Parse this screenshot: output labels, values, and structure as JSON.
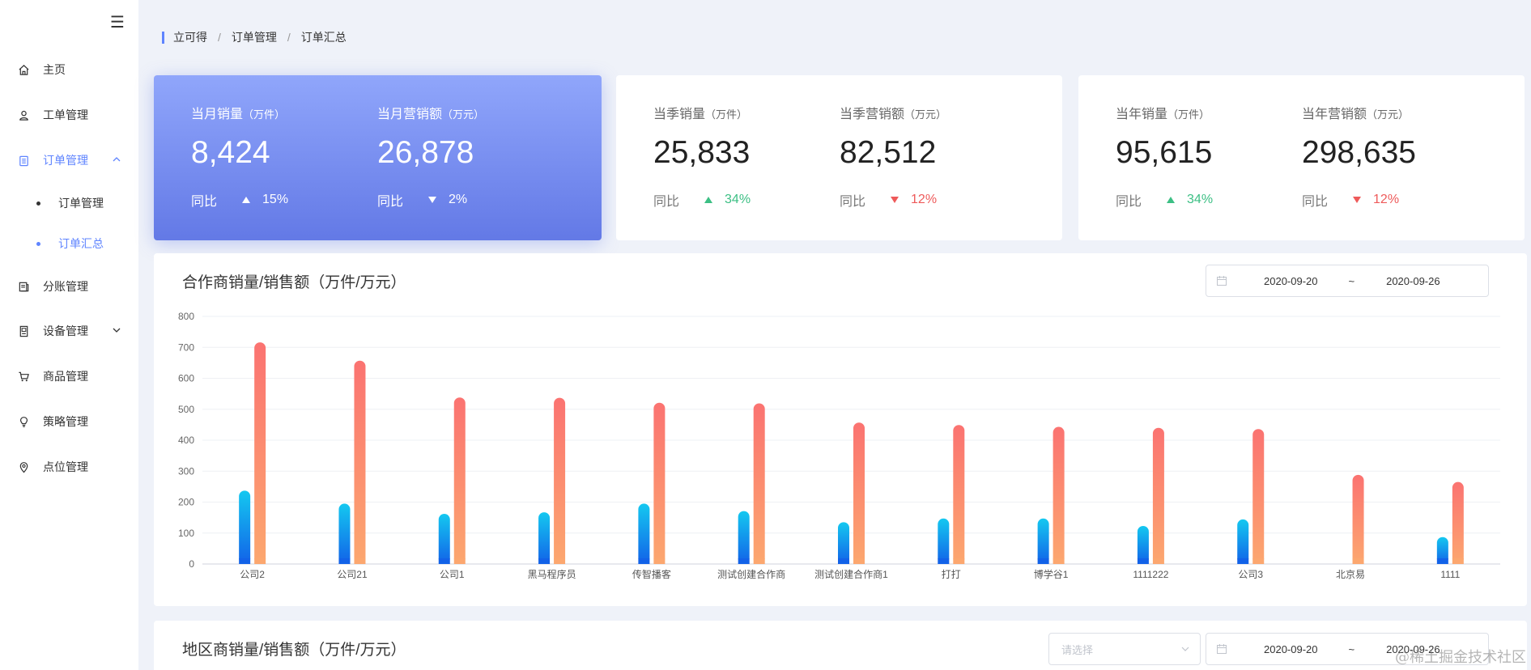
{
  "sidebar": {
    "toggle_icon": "hamburger-icon",
    "items": [
      {
        "label": "主页",
        "icon": "home-icon"
      },
      {
        "label": "工单管理",
        "icon": "user-icon"
      },
      {
        "label": "订单管理",
        "icon": "clipboard-icon",
        "expanded": true
      },
      {
        "label": "分账管理",
        "icon": "ledger-icon"
      },
      {
        "label": "设备管理",
        "icon": "device-icon"
      },
      {
        "label": "商品管理",
        "icon": "cart-icon"
      },
      {
        "label": "策略管理",
        "icon": "bulb-icon"
      },
      {
        "label": "点位管理",
        "icon": "location-icon"
      }
    ],
    "subitems": [
      {
        "label": "订单管理"
      },
      {
        "label": "订单汇总",
        "active": true
      }
    ],
    "accent": "#5f84ff"
  },
  "breadcrumb": [
    "立可得",
    "订单管理",
    "订单汇总"
  ],
  "stats": [
    {
      "a": {
        "label": "当月销量",
        "unit": "（万件）",
        "value": "8,424",
        "trend_label": "同比",
        "dir": "up",
        "pct": "15%"
      },
      "b": {
        "label": "当月营销额",
        "unit": "（万元）",
        "value": "26,878",
        "trend_label": "同比",
        "dir": "down",
        "pct": "2%"
      }
    },
    {
      "a": {
        "label": "当季销量",
        "unit": "（万件）",
        "value": "25,833",
        "trend_label": "同比",
        "dir": "up",
        "pct": "34%"
      },
      "b": {
        "label": "当季营销额",
        "unit": "（万元）",
        "value": "82,512",
        "trend_label": "同比",
        "dir": "down",
        "pct": "12%"
      }
    },
    {
      "a": {
        "label": "当年销量",
        "unit": "（万件）",
        "value": "95,615",
        "trend_label": "同比",
        "dir": "up",
        "pct": "34%"
      },
      "b": {
        "label": "当年营销额",
        "unit": "（万元）",
        "value": "298,635",
        "trend_label": "同比",
        "dir": "down",
        "pct": "12%"
      }
    }
  ],
  "partner_panel": {
    "title": "合作商销量/销售额（万件/万元）",
    "date_start": "2020-09-20",
    "date_sep": "~",
    "date_end": "2020-09-26"
  },
  "region_panel": {
    "title": "地区商销量/销售额（万件/万元）",
    "select_placeholder": "请选择",
    "date_start": "2020-09-20",
    "date_sep": "~",
    "date_end": "2020-09-26"
  },
  "chart_data": {
    "type": "bar",
    "title": "合作商销量/销售额（万件/万元）",
    "categories": [
      "公司2",
      "公司21",
      "公司1",
      "黑马程序员",
      "传智播客",
      "测试创建合作商",
      "测试创建合作商1",
      "打打",
      "博学谷1",
      "1111222",
      "公司3",
      "北京易",
      "1111"
    ],
    "series": [
      {
        "name": "销量",
        "values": [
          237,
          195,
          162,
          167,
          195,
          171,
          135,
          147,
          147,
          123,
          144,
          0,
          87
        ],
        "color_top": "#14c8f0",
        "color_bottom": "#1262e8"
      },
      {
        "name": "销售额",
        "values": [
          716,
          657,
          538,
          537,
          521,
          519,
          457,
          449,
          443,
          440,
          436,
          288,
          265
        ],
        "color_top": "#fb7371",
        "color_bottom": "#fca76f"
      }
    ],
    "ylim": [
      0,
      800
    ],
    "yticks": [
      0,
      100,
      200,
      300,
      400,
      500,
      600,
      700,
      800
    ],
    "grid": true,
    "xlabel": "",
    "ylabel": ""
  },
  "watermark": "@稀土掘金技术社区"
}
